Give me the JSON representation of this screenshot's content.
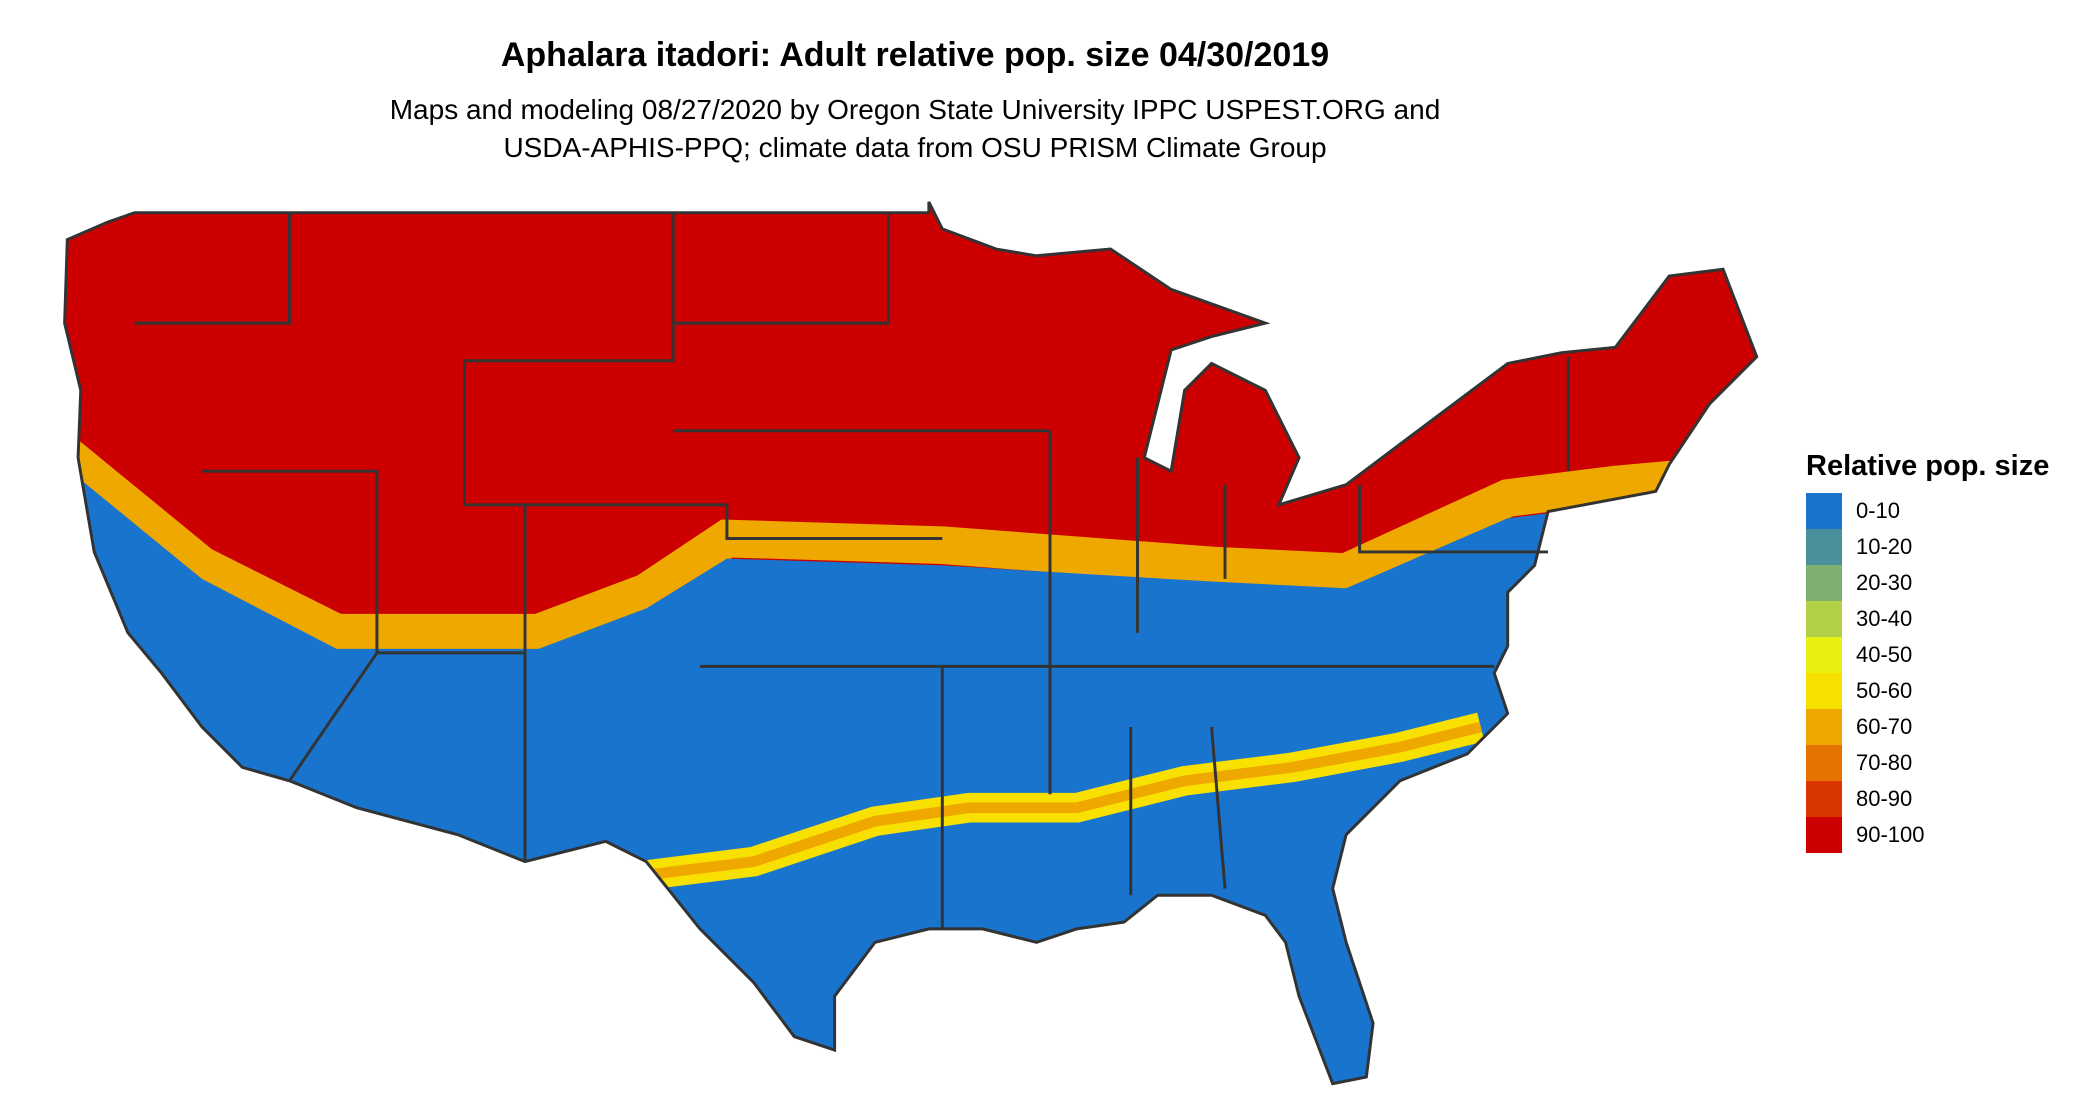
{
  "title": "Aphalara itadori: Adult relative pop. size 04/30/2019",
  "subtitle_lines": [
    "Maps and modeling 08/27/2020 by Oregon State University IPPC USPEST.ORG and",
    "USDA-APHIS-PPQ; climate data from OSU PRISM Climate Group"
  ],
  "chart_data": {
    "type": "heatmap",
    "region": "Contiguous United States",
    "legend": {
      "title": "Relative pop. size",
      "placement": "right",
      "items": [
        {
          "label": "0-10",
          "color": "#1874CD"
        },
        {
          "label": "10-20",
          "color": "#4A8F9C"
        },
        {
          "label": "20-30",
          "color": "#7EB072"
        },
        {
          "label": "30-40",
          "color": "#B3D146"
        },
        {
          "label": "40-50",
          "color": "#E8F012"
        },
        {
          "label": "50-60",
          "color": "#F8E100"
        },
        {
          "label": "60-70",
          "color": "#EFA800"
        },
        {
          "label": "70-80",
          "color": "#E47300"
        },
        {
          "label": "80-90",
          "color": "#D93600"
        },
        {
          "label": "90-100",
          "color": "#CC0000"
        }
      ]
    }
  }
}
